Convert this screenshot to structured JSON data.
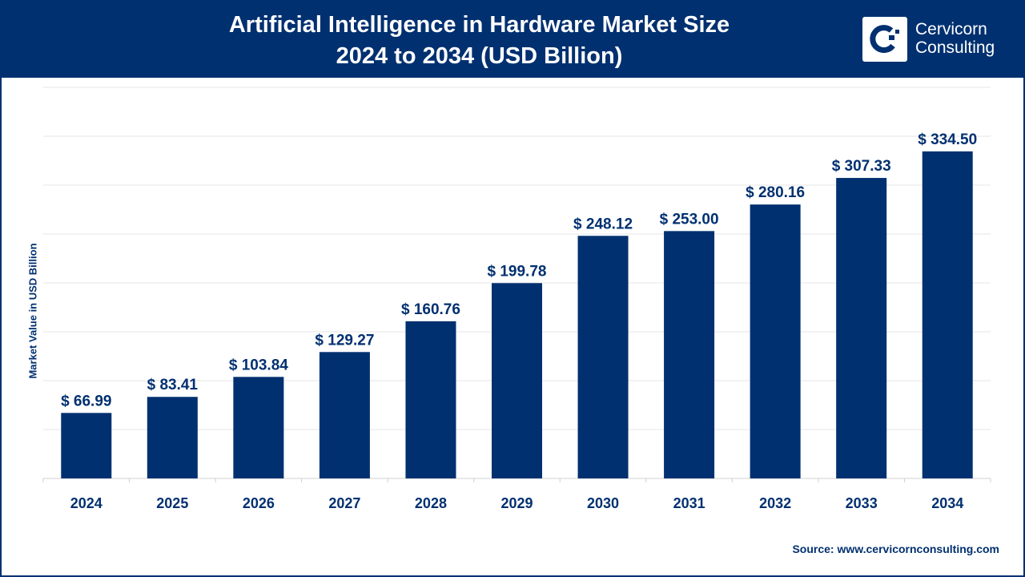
{
  "header": {
    "title_line1": "Artificial Intelligence in Hardware Market Size",
    "title_line2": "2024 to 2034 (USD Billion)",
    "logo_line1": "Cervicorn",
    "logo_line2": "Consulting"
  },
  "source": "Source: www.cervicornconsulting.com",
  "colors": {
    "navy": "#003070",
    "grid": "#e6e6e6"
  },
  "chart_data": {
    "type": "bar",
    "title": "Artificial Intelligence in Hardware Market Size 2024 to 2034 (USD Billion)",
    "xlabel": "",
    "ylabel": "Market Value in USD Billion",
    "categories": [
      "2024",
      "2025",
      "2026",
      "2027",
      "2028",
      "2029",
      "2030",
      "2031",
      "2032",
      "2033",
      "2034"
    ],
    "values": [
      66.99,
      83.41,
      103.84,
      129.27,
      160.76,
      199.78,
      248.12,
      253.0,
      280.16,
      307.33,
      334.5
    ],
    "data_labels": [
      "$ 66.99",
      "$ 83.41",
      "$ 103.84",
      "$ 129.27",
      "$ 160.76",
      "$ 199.78",
      "$ 248.12",
      "$ 253.00",
      "$ 280.16",
      "$ 307.33",
      "$ 334.50"
    ],
    "ylim": [
      0,
      400
    ],
    "y_grid_step": 50,
    "grid": true,
    "y_tick_labels_shown": false,
    "bar_color": "#003070"
  }
}
